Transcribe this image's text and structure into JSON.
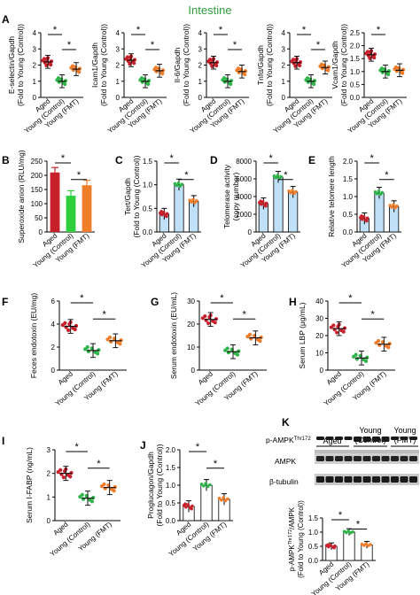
{
  "title": "Intestine",
  "colors": {
    "title": "#2e9e3c",
    "aged": "#c8202b",
    "young_control": "#2fb54a",
    "young_fmt": "#f07d2a",
    "panel_b_young_control": "#2fcf3c",
    "blue_fill": "#bfe0f7"
  },
  "groups": [
    "Aged",
    "Young (Control)",
    "Young (FMT)"
  ],
  "sig_label": "*",
  "blot": {
    "header_aged": "Aged",
    "header_young_control_1": "Young",
    "header_young_control_2": "(Control)",
    "header_young_fmt_1": "Young",
    "header_young_fmt_2": "(FMT)",
    "labels": [
      "p-AMPK",
      "AMPK",
      "β-tubulin"
    ],
    "p_ampk_sup": "Thr172",
    "ylabel_main": "p-AMPK",
    "ylabel_sup": "Thr172",
    "ylabel_tail": "/AMPK",
    "ylabel2": "(Fold to Young (Control))"
  },
  "chart_data": [
    {
      "panel": "A",
      "letter": "A",
      "type": "scatter",
      "style": "dots",
      "ylabel": "E-selectin/Gapdh",
      "ylabel2": "(Fold to Young (Control))",
      "ylim": [
        0,
        4
      ],
      "yticks": [
        "0",
        "1",
        "2",
        "3",
        "4"
      ],
      "values": [
        2.2,
        1.0,
        1.75
      ],
      "sig": [
        [
          0,
          1
        ],
        [
          1,
          2
        ]
      ]
    },
    {
      "panel": "A2",
      "letter": "",
      "type": "scatter",
      "style": "dots",
      "ylabel": "Icam1/Gapdh",
      "ylabel2": "(Fold to Young (Control))",
      "ylim": [
        0,
        4
      ],
      "yticks": [
        "0",
        "1",
        "2",
        "3",
        "4"
      ],
      "values": [
        2.3,
        1.0,
        1.65
      ],
      "sig": [
        [
          0,
          1
        ],
        [
          1,
          2
        ]
      ]
    },
    {
      "panel": "A3",
      "letter": "",
      "type": "scatter",
      "style": "dots",
      "ylabel": "Il-6/Gapdh",
      "ylabel2": "(Fold to Young (Control))",
      "ylim": [
        0,
        4
      ],
      "yticks": [
        "0",
        "1",
        "2",
        "3",
        "4"
      ],
      "values": [
        2.15,
        1.0,
        1.6
      ],
      "sig": [
        [
          0,
          1
        ],
        [
          1,
          2
        ]
      ]
    },
    {
      "panel": "A4",
      "letter": "",
      "type": "scatter",
      "style": "dots",
      "ylabel": "Tnfα/Gapdh",
      "ylabel2": "(Fold to Young (Control))",
      "ylim": [
        0,
        4
      ],
      "yticks": [
        "0",
        "1",
        "2",
        "3",
        "4"
      ],
      "values": [
        2.15,
        1.0,
        1.85
      ],
      "sig": [
        [
          0,
          1
        ],
        [
          1,
          2
        ]
      ]
    },
    {
      "panel": "A5",
      "letter": "",
      "type": "scatter",
      "style": "dots",
      "ylabel": "Vcam1/Gapdh",
      "ylabel2": "(Fold to Young (Control))",
      "ylim": [
        0,
        2.5
      ],
      "yticks": [
        "0.0",
        "0.5",
        "1.0",
        "1.5",
        "2.0",
        "2.5"
      ],
      "values": [
        1.65,
        1.0,
        1.05
      ],
      "sig": [
        [
          0,
          1
        ]
      ]
    },
    {
      "panel": "B",
      "letter": "B",
      "type": "bar",
      "style": "colorbar",
      "ylabel": "Superoxide anion (RLU/mg)",
      "ylabel2": "",
      "ylim": [
        0,
        250
      ],
      "yticks": [
        "0",
        "50",
        "100",
        "150",
        "200",
        "250"
      ],
      "values": [
        210,
        128,
        165
      ],
      "sig": [
        [
          0,
          1
        ],
        [
          1,
          2
        ]
      ]
    },
    {
      "panel": "C",
      "letter": "C",
      "type": "bar",
      "style": "bluebar",
      "ylabel": "Tert/Gapdh",
      "ylabel2": "(Fold to Young (Control))",
      "ylim": [
        0,
        1.5
      ],
      "yticks": [
        "0.0",
        "0.5",
        "1.0",
        "1.5"
      ],
      "values": [
        0.38,
        1.0,
        0.65
      ],
      "sig": [
        [
          0,
          1
        ],
        [
          1,
          2
        ]
      ]
    },
    {
      "panel": "D",
      "letter": "D",
      "type": "bar",
      "style": "bluebar",
      "ylabel": "Telomerase activity",
      "ylabel2": "(copy number)",
      "ylim": [
        0,
        8000
      ],
      "yticks": [
        "0",
        "2000",
        "4000",
        "6000",
        "8000"
      ],
      "values": [
        3200,
        6200,
        4500
      ],
      "sig": [
        [
          0,
          1
        ],
        [
          1,
          2
        ]
      ]
    },
    {
      "panel": "E",
      "letter": "E",
      "type": "bar",
      "style": "bluebar",
      "ylabel": "Relative telomere length",
      "ylabel2": "",
      "ylim": [
        0,
        2.0
      ],
      "yticks": [
        "0.0",
        "0.5",
        "1.0",
        "1.5",
        "2.0"
      ],
      "values": [
        0.38,
        1.1,
        0.72
      ],
      "sig": [
        [
          0,
          1
        ],
        [
          1,
          2
        ]
      ]
    },
    {
      "panel": "F",
      "letter": "F",
      "type": "scatter",
      "style": "dots",
      "ylabel": "Feces endotoxin (EU/mg)",
      "ylabel2": "",
      "ylim": [
        0,
        6
      ],
      "yticks": [
        "0",
        "2",
        "4",
        "6"
      ],
      "values": [
        3.8,
        1.7,
        2.55
      ],
      "sig": [
        [
          0,
          1
        ],
        [
          1,
          2
        ]
      ]
    },
    {
      "panel": "G",
      "letter": "G",
      "type": "scatter",
      "style": "dots",
      "ylabel": "Serum endotoxin (EU/mL)",
      "ylabel2": "",
      "ylim": [
        0,
        30
      ],
      "yticks": [
        "0",
        "10",
        "20",
        "30"
      ],
      "values": [
        22,
        8,
        14
      ],
      "sig": [
        [
          0,
          1
        ],
        [
          1,
          2
        ]
      ]
    },
    {
      "panel": "H",
      "letter": "H",
      "type": "scatter",
      "style": "dots",
      "ylabel": "Serum LBP (μg/mL)",
      "ylabel2": "",
      "ylim": [
        0,
        40
      ],
      "yticks": [
        "0",
        "10",
        "20",
        "30",
        "40"
      ],
      "values": [
        24,
        7,
        15
      ],
      "sig": [
        [
          0,
          1
        ],
        [
          1,
          2
        ]
      ]
    },
    {
      "panel": "I",
      "letter": "I",
      "type": "scatter",
      "style": "dots",
      "ylabel": "Serum I-FABP (ng/mL)",
      "ylabel2": "",
      "ylim": [
        0,
        3
      ],
      "yticks": [
        "0",
        "1",
        "2",
        "3"
      ],
      "values": [
        2.0,
        0.95,
        1.4
      ],
      "sig": [
        [
          0,
          1
        ],
        [
          1,
          2
        ]
      ]
    },
    {
      "panel": "J",
      "letter": "J",
      "type": "bar",
      "style": "orangebar",
      "ylabel": "Proglucagon/Gapdh",
      "ylabel2": "(Fold to Young (Control))",
      "ylim": [
        0,
        2.0
      ],
      "yticks": [
        "0.0",
        "0.5",
        "1.0",
        "1.5",
        "2.0"
      ],
      "values": [
        0.4,
        1.0,
        0.6
      ],
      "sig": [
        [
          0,
          1
        ],
        [
          1,
          2
        ]
      ]
    },
    {
      "panel": "K",
      "letter": "K",
      "type": "bar",
      "style": "orangebar",
      "ylabel": "",
      "ylabel2": "",
      "ylim": [
        0,
        1.5
      ],
      "yticks": [
        "0.0",
        "0.5",
        "1.0",
        "1.5"
      ],
      "values": [
        0.5,
        1.0,
        0.55
      ],
      "sig": [
        [
          0,
          1
        ],
        [
          1,
          2
        ]
      ]
    }
  ]
}
